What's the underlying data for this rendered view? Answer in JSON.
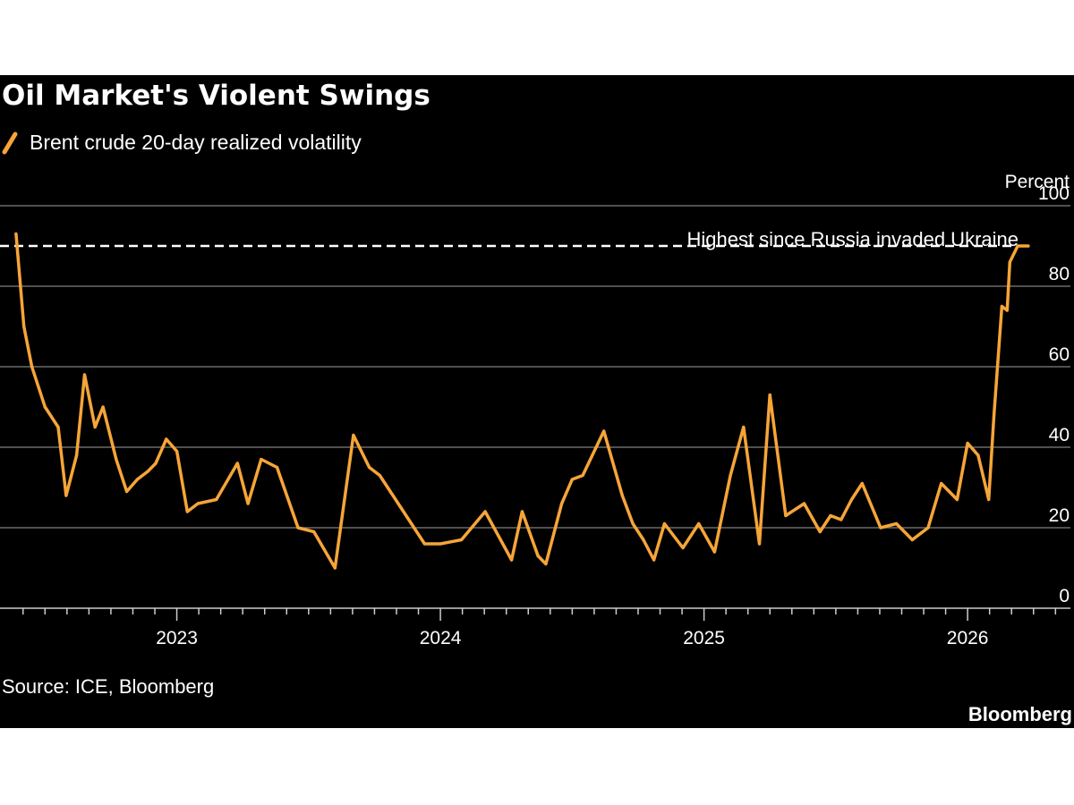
{
  "chart_data": {
    "type": "line",
    "title": "Oil Market's Violent Swings",
    "series": [
      {
        "name": "Brent crude 20-day realized volatility",
        "color": "#f6a538",
        "x": [
          2022.39,
          2022.42,
          2022.45,
          2022.5,
          2022.55,
          2022.58,
          2022.62,
          2022.65,
          2022.69,
          2022.72,
          2022.77,
          2022.81,
          2022.85,
          2022.89,
          2022.92,
          2022.96,
          2023.0,
          2023.04,
          2023.08,
          2023.15,
          2023.23,
          2023.27,
          2023.32,
          2023.38,
          2023.46,
          2023.52,
          2023.6,
          2023.67,
          2023.73,
          2023.77,
          2023.81,
          2023.85,
          2023.94,
          2024.0,
          2024.08,
          2024.17,
          2024.27,
          2024.31,
          2024.37,
          2024.4,
          2024.46,
          2024.5,
          2024.54,
          2024.62,
          2024.69,
          2024.73,
          2024.77,
          2024.81,
          2024.85,
          2024.92,
          2024.98,
          2025.04,
          2025.1,
          2025.15,
          2025.21,
          2025.25,
          2025.31,
          2025.38,
          2025.44,
          2025.48,
          2025.52,
          2025.56,
          2025.6,
          2025.67,
          2025.73,
          2025.79,
          2025.85,
          2025.9,
          2025.96,
          2026.0,
          2026.04,
          2026.08,
          2026.1,
          2026.13,
          2026.15,
          2026.16,
          2026.19,
          2026.21,
          2026.23
        ],
        "values": [
          93,
          70,
          60,
          50,
          45,
          28,
          38,
          58,
          45,
          50,
          37,
          29,
          32,
          34,
          36,
          42,
          39,
          24,
          26,
          27,
          36,
          26,
          37,
          35,
          20,
          19,
          10,
          43,
          35,
          33,
          29,
          25,
          16,
          16,
          17,
          24,
          12,
          24,
          13,
          11,
          26,
          32,
          33,
          44,
          28,
          21,
          17,
          12,
          21,
          15,
          21,
          14,
          33,
          45,
          16,
          53,
          23,
          26,
          19,
          23,
          22,
          27,
          31,
          20,
          21,
          17,
          20,
          31,
          27,
          41,
          38,
          27,
          48,
          75,
          74,
          86,
          90,
          90,
          90
        ],
        "highlight_value": 90
      }
    ],
    "legend": [
      "Brent crude 20-day realized volatility"
    ],
    "ylabel": "Percent",
    "ylim": [
      0,
      100
    ],
    "yticks": [
      0,
      20,
      40,
      60,
      80,
      100
    ],
    "xlim": [
      2022.37,
      2026.39
    ],
    "xticks": [
      {
        "value": 2023,
        "label": "2023"
      },
      {
        "value": 2024,
        "label": "2024"
      },
      {
        "value": 2025,
        "label": "2025"
      },
      {
        "value": 2026,
        "label": "2026"
      }
    ],
    "grid": true,
    "annotation": {
      "text": "Highest since Russia invaded Ukraine",
      "value": 90
    },
    "source": "Source: ICE, Bloomberg",
    "brand": "Bloomberg"
  }
}
